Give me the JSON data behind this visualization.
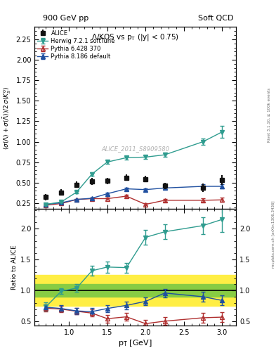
{
  "title_top_left": "900 GeV pp",
  "title_top_right": "Soft QCD",
  "plot_title": "Λ/KOS vs p_{T} (|y| < 0.75)",
  "ylabel_main": "(σ(Λ)+σ(Λ̅))/2 σ(K^0_S)",
  "ylabel_ratio": "Ratio to ALICE",
  "xlabel": "p_{T} [GeV]",
  "watermark": "ALICE_2011_S8909580",
  "alice_x": [
    0.7,
    0.9,
    1.1,
    1.3,
    1.5,
    1.75,
    2.0,
    2.25,
    2.75,
    3.0
  ],
  "alice_y": [
    0.325,
    0.38,
    0.475,
    0.515,
    0.52,
    0.56,
    0.545,
    0.46,
    0.44,
    0.53
  ],
  "alice_yerr": [
    0.04,
    0.04,
    0.04,
    0.04,
    0.04,
    0.04,
    0.04,
    0.04,
    0.05,
    0.06
  ],
  "herwig_x": [
    0.7,
    0.9,
    1.1,
    1.3,
    1.5,
    1.75,
    2.0,
    2.25,
    2.75,
    3.0
  ],
  "herwig_y": [
    0.235,
    0.265,
    0.385,
    0.605,
    0.752,
    0.805,
    0.812,
    0.84,
    1.0,
    1.12
  ],
  "herwig_yerr": [
    0.008,
    0.009,
    0.012,
    0.018,
    0.02,
    0.021,
    0.022,
    0.028,
    0.038,
    0.07
  ],
  "pythia6_x": [
    0.7,
    0.9,
    1.1,
    1.3,
    1.5,
    1.75,
    2.0,
    2.25,
    2.75,
    3.0
  ],
  "pythia6_y": [
    0.225,
    0.245,
    0.295,
    0.305,
    0.305,
    0.335,
    0.235,
    0.285,
    0.285,
    0.29
  ],
  "pythia6_yerr": [
    0.008,
    0.008,
    0.01,
    0.011,
    0.013,
    0.015,
    0.015,
    0.018,
    0.022,
    0.025
  ],
  "pythia8_x": [
    0.7,
    0.9,
    1.1,
    1.3,
    1.5,
    1.75,
    2.0,
    2.25,
    2.75,
    3.0
  ],
  "pythia8_y": [
    0.235,
    0.255,
    0.295,
    0.31,
    0.365,
    0.425,
    0.415,
    0.435,
    0.455,
    0.455
  ],
  "pythia8_yerr": [
    0.008,
    0.009,
    0.01,
    0.011,
    0.012,
    0.015,
    0.015,
    0.018,
    0.025,
    0.028
  ],
  "ratio_herwig_x": [
    0.7,
    0.9,
    1.1,
    1.3,
    1.5,
    1.75,
    2.0,
    2.25,
    2.75,
    3.0
  ],
  "ratio_herwig_y": [
    0.74,
    0.99,
    1.04,
    1.32,
    1.38,
    1.37,
    1.86,
    1.95,
    2.05,
    2.15
  ],
  "ratio_herwig_yerr": [
    0.07,
    0.05,
    0.06,
    0.08,
    0.09,
    0.08,
    0.12,
    0.12,
    0.14,
    0.2
  ],
  "ratio_pythia6_x": [
    0.7,
    0.9,
    1.1,
    1.3,
    1.5,
    1.75,
    2.0,
    2.25,
    2.75,
    3.0
  ],
  "ratio_pythia6_y": [
    0.715,
    0.7,
    0.665,
    0.635,
    0.545,
    0.575,
    0.465,
    0.505,
    0.56,
    0.57
  ],
  "ratio_pythia6_yerr": [
    0.05,
    0.05,
    0.05,
    0.055,
    0.06,
    0.06,
    0.06,
    0.065,
    0.075,
    0.08
  ],
  "ratio_pythia8_x": [
    0.7,
    0.9,
    1.1,
    1.3,
    1.5,
    1.75,
    2.0,
    2.25,
    2.75,
    3.0
  ],
  "ratio_pythia8_y": [
    0.73,
    0.71,
    0.67,
    0.66,
    0.71,
    0.76,
    0.825,
    0.96,
    0.9,
    0.84
  ],
  "ratio_pythia8_yerr": [
    0.05,
    0.05,
    0.05,
    0.055,
    0.055,
    0.06,
    0.065,
    0.07,
    0.08,
    0.08
  ],
  "color_herwig": "#2f9c8f",
  "color_pythia6": "#b03030",
  "color_pythia8": "#2050a0",
  "color_alice": "#111111",
  "ylim_main": [
    0.18,
    2.4
  ],
  "ylim_ratio": [
    0.43,
    2.32
  ],
  "xlim": [
    0.55,
    3.18
  ],
  "green_band": [
    0.9,
    1.1
  ],
  "yellow_band": [
    0.75,
    1.25
  ]
}
